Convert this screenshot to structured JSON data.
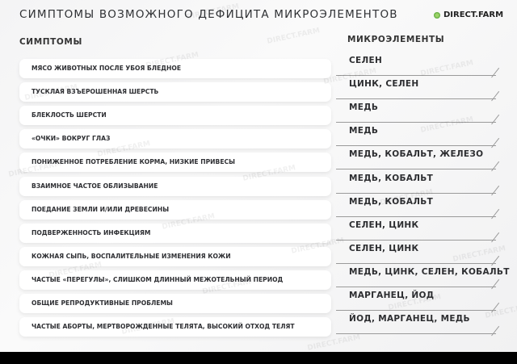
{
  "title": "СИМПТОМЫ ВОЗМОЖНОГО ДЕФИЦИТА МИКРОЭЛЕМЕНТОВ",
  "logo": "DIRECT.FARM",
  "headers": {
    "symptoms": "СИМПТОМЫ",
    "elements": "МИКРОЭЛЕМЕНТЫ"
  },
  "rows": [
    {
      "symptom": "МЯСО ЖИВОТНЫХ ПОСЛЕ УБОЯ БЛЕДНОЕ",
      "elements": "СЕЛЕН"
    },
    {
      "symptom": "ТУСКЛАЯ ВЗЪЕРОШЕННАЯ ШЕРСТЬ",
      "elements": "ЦИНК, СЕЛЕН"
    },
    {
      "symptom": "БЛЕКЛОСТЬ ШЕРСТИ",
      "elements": "МЕДЬ"
    },
    {
      "symptom": "«ОЧКИ» ВОКРУГ ГЛАЗ",
      "elements": "МЕДЬ"
    },
    {
      "symptom": "ПОНИЖЕННОЕ ПОТРЕБЛЕНИЕ КОРМА, НИЗКИЕ ПРИВЕСЫ",
      "elements": "МЕДЬ, КОБАЛЬТ, ЖЕЛЕЗО"
    },
    {
      "symptom": "ВЗАИМНОЕ ЧАСТОЕ ОБЛИЗЫВАНИЕ",
      "elements": "МЕДЬ, КОБАЛЬТ"
    },
    {
      "symptom": "ПОЕДАНИЕ ЗЕМЛИ И/ИЛИ ДРЕВЕСИНЫ",
      "elements": "МЕДЬ, КОБАЛЬТ"
    },
    {
      "symptom": "ПОДВЕРЖЕННОСТЬ ИНФЕКЦИЯМ",
      "elements": "СЕЛЕН, ЦИНК"
    },
    {
      "symptom": "КОЖНАЯ СЫПЬ, ВОСПАЛИТЕЛЬНЫЕ ИЗМЕНЕНИЯ КОЖИ",
      "elements": "СЕЛЕН, ЦИНК"
    },
    {
      "symptom": "ЧАСТЫЕ «ПЕРЕГУЛЫ», СЛИШКОМ ДЛИННЫЙ МЕЖОТЕЛЬНЫЙ ПЕРИОД",
      "elements": "МЕДЬ, ЦИНК, СЕЛЕН, КОБАЛЬТ"
    },
    {
      "symptom": "ОБЩИЕ РЕПРОДУКТИВНЫЕ ПРОБЛЕМЫ",
      "elements": "МАРГАНЕЦ, ЙОД"
    },
    {
      "symptom": "ЧАСТЫЕ АБОРТЫ, МЕРТВОРОЖДЕННЫЕ ТЕЛЯТА, ВЫСОКИЙ ОТХОД ТЕЛЯТ",
      "elements": "ЙОД, МАРГАНЕЦ, МЕДЬ"
    }
  ]
}
